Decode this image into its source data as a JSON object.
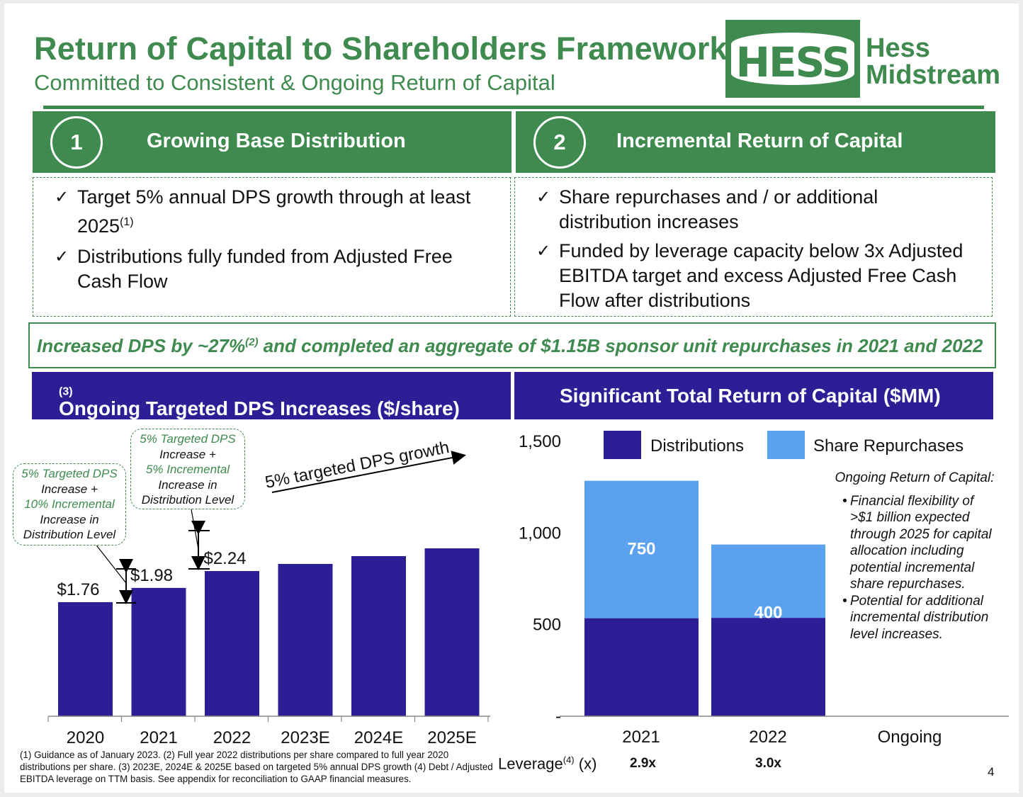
{
  "header": {
    "title": "Return of Capital to Shareholders Framework",
    "subtitle": "Committed to Consistent & Ongoing Return of Capital"
  },
  "logo": {
    "mark": "HESS",
    "word_line1": "Hess",
    "word_line2": "Midstream"
  },
  "pillars": [
    {
      "number": "1",
      "title": "Growing Base Distribution",
      "bullets": [
        {
          "text": "Target 5% annual DPS growth through at least 2025",
          "sup": "(1)"
        },
        {
          "text": "Distributions fully funded from Adjusted Free Cash Flow",
          "sup": ""
        }
      ]
    },
    {
      "number": "2",
      "title": "Incremental Return of Capital",
      "bullets": [
        {
          "text": "Share repurchases and / or additional distribution increases",
          "sup": ""
        },
        {
          "text": "Funded by leverage capacity below 3x Adjusted EBITDA target and excess Adjusted Free Cash Flow after distributions",
          "sup": ""
        }
      ]
    }
  ],
  "banner": {
    "part1": "Increased DPS by ~27%",
    "sup": "(2)",
    "part2": " and completed an aggregate of $1.15B sponsor unit repurchases in 2021 and 2022"
  },
  "left_section": {
    "title": "Ongoing Targeted DPS Increases ($/share)",
    "sup": "(3)"
  },
  "right_section": {
    "title": "Significant Total Return of Capital ($MM)"
  },
  "callouts": [
    {
      "l1": "5% Targeted DPS",
      "l2": "Increase +",
      "l3": "10% Incremental",
      "l4": "Increase in",
      "l5": "Distribution Level"
    },
    {
      "l1": "5% Targeted DPS",
      "l2": "Increase +",
      "l3": "5% Incremental",
      "l4": "Increase in",
      "l5": "Distribution Level"
    }
  ],
  "growth_arrow_label": "5% targeted DPS growth",
  "side_note": {
    "title": "Ongoing Return of Capital:",
    "items": [
      "Financial flexibility of >$1 billion expected through 2025 for capital allocation including potential incremental share repurchases.",
      "Potential for additional incremental distribution level increases."
    ]
  },
  "leverage": {
    "label": "Leverage",
    "sup": "(4)",
    "unit": " (x)",
    "values": [
      "2.9x",
      "3.0x"
    ]
  },
  "footnote": "(1) Guidance as of January 2023. (2) Full year 2022 distributions per share compared to full year 2020 distributions per share. (3) 2023E, 2024E & 2025E based on targeted 5% annual DPS growth (4) Debt / Adjusted EBITDA leverage on TTM basis. See appendix for reconciliation to GAAP financial measures.",
  "page_number": "4",
  "colors": {
    "green": "#3f8a4f",
    "navy": "#2c1f96",
    "light_blue": "#5aa2ef"
  },
  "chart_data": [
    {
      "type": "bar",
      "title": "Ongoing Targeted DPS Increases ($/share)",
      "categories": [
        "2020",
        "2021",
        "2022",
        "2023E",
        "2024E",
        "2025E"
      ],
      "values": [
        1.76,
        1.98,
        2.24,
        2.35,
        2.47,
        2.59
      ],
      "data_labels": [
        "$1.76",
        "$1.98",
        "$2.24",
        "",
        "",
        ""
      ],
      "color": "#2c1f96"
    },
    {
      "type": "bar",
      "stacked": true,
      "title": "Significant Total Return of Capital ($MM)",
      "categories": [
        "2021",
        "2022",
        "Ongoing"
      ],
      "series": [
        {
          "name": "Distributions",
          "values": [
            535,
            537,
            null
          ],
          "color": "#2c1f96"
        },
        {
          "name": "Share Repurchases",
          "values": [
            750,
            400,
            null
          ],
          "color": "#5aa2ef"
        }
      ],
      "data_labels": [
        "750",
        "400"
      ],
      "ylim": [
        0,
        1500
      ],
      "yticks": [
        0,
        500,
        1000,
        1500
      ],
      "ytick_labels": [
        "-",
        "500",
        "1,000",
        "1,500"
      ],
      "legend": "top"
    }
  ]
}
